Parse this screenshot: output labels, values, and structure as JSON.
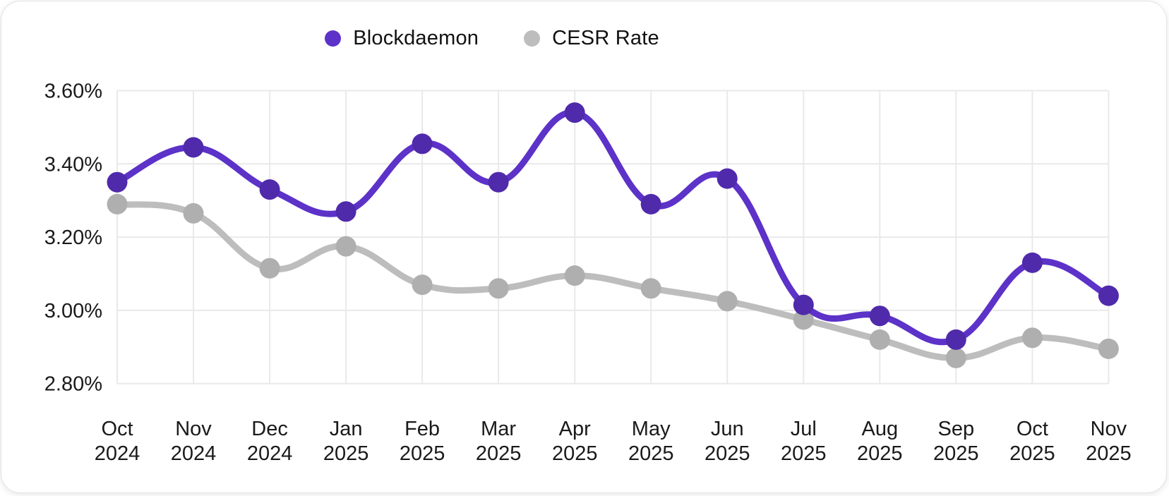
{
  "legend": {
    "items": [
      {
        "label": "Blockdaemon"
      },
      {
        "label": "CESR Rate"
      }
    ]
  },
  "chart_data": {
    "type": "line",
    "categories": [
      "Oct 2024",
      "Nov 2024",
      "Dec 2024",
      "Jan 2025",
      "Feb 2025",
      "Mar 2025",
      "Apr 2025",
      "May 2025",
      "Jun 2025",
      "Jul 2025",
      "Aug 2025",
      "Sep 2025",
      "Oct 2025",
      "Nov 2025"
    ],
    "series": [
      {
        "name": "Blockdaemon",
        "color": "#5C32C8",
        "point_color": "#4F2AAB",
        "values": [
          3.35,
          3.445,
          3.33,
          3.27,
          3.455,
          3.35,
          3.54,
          3.29,
          3.36,
          3.015,
          2.985,
          2.92,
          3.13,
          3.04
        ]
      },
      {
        "name": "CESR Rate",
        "color": "#BDBDBD",
        "point_color": "#AFAFAF",
        "values": [
          3.29,
          3.265,
          3.115,
          3.175,
          3.07,
          3.06,
          3.095,
          3.06,
          3.025,
          2.975,
          2.92,
          2.87,
          2.925,
          2.895
        ]
      }
    ],
    "yticks": [
      {
        "value": 2.8,
        "label": "2.80%"
      },
      {
        "value": 3.0,
        "label": "3.00%"
      },
      {
        "value": 3.2,
        "label": "3.20%"
      },
      {
        "value": 3.4,
        "label": "3.40%"
      },
      {
        "value": 3.6,
        "label": "3.60%"
      }
    ],
    "ylim": [
      2.8,
      3.6
    ],
    "grid": true,
    "legend_position": "top",
    "smoothing": "catmull-rom"
  },
  "colors": {
    "gridline": "#E9E9E9",
    "axis_text": "#1A1A1A",
    "card_border": "#E3E3E3",
    "background": "#FFFFFF"
  }
}
